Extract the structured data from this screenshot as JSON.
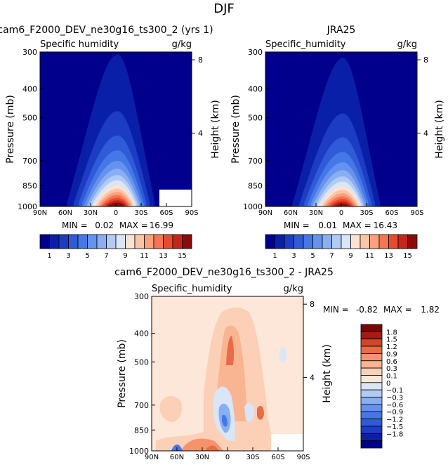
{
  "season_title": "DJF",
  "contour_levels_full": [
    1,
    2,
    3,
    4,
    5,
    6,
    7,
    8,
    9,
    10,
    11,
    12,
    13,
    14,
    15
  ],
  "contour_levels_diff": [
    -1.8,
    -1.5,
    -1.2,
    -0.9,
    -0.6,
    -0.3,
    -0.1,
    0,
    0.1,
    0.3,
    0.6,
    0.9,
    1.2,
    1.5,
    1.8
  ],
  "colors_full": [
    "#00008c",
    "#0a1fa8",
    "#1c3cc4",
    "#2f5ad8",
    "#4677e6",
    "#6592ee",
    "#88aff2",
    "#b1cbf5",
    "#d8e6f8",
    "#fbe2d2",
    "#fcc5a8",
    "#fba07c",
    "#f57652",
    "#e64b30",
    "#c6261a",
    "#8c0a0a"
  ],
  "colors_diff": [
    "#00008c",
    "#0a1fa8",
    "#1c3cc4",
    "#2f5ad8",
    "#4677e6",
    "#6592ee",
    "#88aff2",
    "#b1cbf5",
    "#d8e6f8",
    "#fde7d8",
    "#fbd0b6",
    "#f9b491",
    "#f5936c",
    "#ea6b48",
    "#d64328",
    "#a51c12",
    "#7a0606"
  ],
  "chart_data": [
    {
      "type": "contour",
      "title": "cam6_F2000_DEV_ne30g16_ts300_2 (yrs 1)",
      "subtitle_left": "Specific humidity",
      "subtitle_right": "g/kg",
      "xlabel": "",
      "ylabel": "Pressure (mb)",
      "ylabel_right": "Height (km)",
      "x_ticks": [
        "90N",
        "60N",
        "30N",
        "0",
        "30S",
        "60S",
        "90S"
      ],
      "y_ticks": [
        "300",
        "400",
        "500",
        "700",
        "850",
        "1000"
      ],
      "y_tick_values": [
        300,
        400,
        500,
        700,
        850,
        1000
      ],
      "right_ticks": [
        "8",
        "4"
      ],
      "right_tick_values": [
        8,
        4
      ],
      "y_scale": "log",
      "ylim": [
        1000,
        300
      ],
      "xlim": [
        90,
        -90
      ],
      "min_label": "MIN =",
      "min_value": "0.02",
      "max_label": "MAX =",
      "max_value": "16.99",
      "colorbar_labels": [
        "1",
        "3",
        "5",
        "7",
        "9",
        "11",
        "13",
        "15"
      ],
      "field": {
        "peak_value": 16.99,
        "peak_lat": -2,
        "lat_width": 30,
        "scale_height_frac": 0.35,
        "asymmetry": 0.15
      }
    },
    {
      "type": "contour",
      "title": "JRA25",
      "subtitle_left": "Specific_humidity",
      "subtitle_right": "g/kg",
      "xlabel": "",
      "ylabel": "Pressure (mb)",
      "ylabel_right": "Height (km)",
      "x_ticks": [
        "90N",
        "60N",
        "30N",
        "0",
        "30S",
        "60S",
        "90S"
      ],
      "y_ticks": [
        "300",
        "400",
        "500",
        "700",
        "850",
        "1000"
      ],
      "y_tick_values": [
        300,
        400,
        500,
        700,
        850,
        1000
      ],
      "right_ticks": [
        "8",
        "4"
      ],
      "right_tick_values": [
        8,
        4
      ],
      "y_scale": "log",
      "ylim": [
        1000,
        300
      ],
      "xlim": [
        90,
        -90
      ],
      "min_label": "MIN =",
      "min_value": "0.01",
      "max_label": "MAX =",
      "max_value": "16.43",
      "colorbar_labels": [
        "1",
        "3",
        "5",
        "7",
        "9",
        "11",
        "13",
        "15"
      ],
      "field": {
        "peak_value": 16.43,
        "peak_lat": -2,
        "lat_width": 30,
        "scale_height_frac": 0.35,
        "asymmetry": 0.15
      }
    },
    {
      "type": "contour",
      "title": "cam6_F2000_DEV_ne30g16_ts300_2 - JRA25",
      "subtitle_left": "Specific_humidity",
      "subtitle_right": "g/kg",
      "xlabel": "",
      "ylabel": "Pressure (mb)",
      "ylabel_right": "Height (km)",
      "x_ticks": [
        "90N",
        "60N",
        "30N",
        "0",
        "30S",
        "60S",
        "90S"
      ],
      "y_ticks": [
        "300",
        "400",
        "500",
        "700",
        "850",
        "1000"
      ],
      "y_tick_values": [
        300,
        400,
        500,
        700,
        850,
        1000
      ],
      "right_ticks": [
        "8",
        "4"
      ],
      "right_tick_values": [
        8,
        4
      ],
      "y_scale": "log",
      "ylim": [
        1000,
        300
      ],
      "xlim": [
        90,
        -90
      ],
      "min_label": "MIN =",
      "min_value": "-0.82",
      "max_label": "MAX =",
      "max_value": "1.82",
      "colorbar_labels": [
        "1.8",
        "1.5",
        "1.2",
        "0.9",
        "0.6",
        "0.3",
        "0.1",
        "0",
        "−0.1",
        "−0.3",
        "−0.6",
        "−0.9",
        "−1.2",
        "−1.5",
        "−1.8"
      ]
    }
  ]
}
